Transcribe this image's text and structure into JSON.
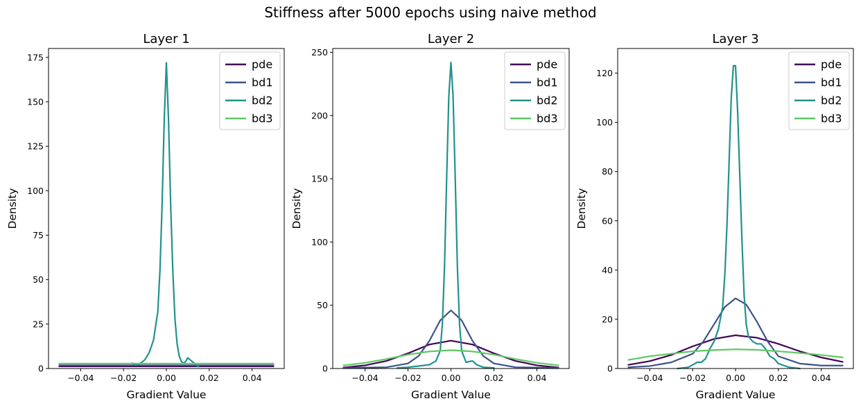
{
  "suptitle": "Stiffness after 5000 epochs using naive method",
  "colors": {
    "pde": "#440154",
    "bd1": "#3b528b",
    "bd2": "#21918c",
    "bd3": "#5ec962"
  },
  "chart_data": [
    {
      "type": "line",
      "title": "Layer 1",
      "xlabel": "Gradient Value",
      "ylabel": "Density",
      "xlim": [
        -0.055,
        0.055
      ],
      "ylim": [
        0,
        180
      ],
      "xticks": [
        -0.04,
        -0.02,
        0.0,
        0.02,
        0.04
      ],
      "xtick_labels": [
        "−0.04",
        "−0.02",
        "0.00",
        "0.02",
        "0.04"
      ],
      "yticks": [
        0,
        25,
        50,
        75,
        100,
        125,
        150,
        175
      ],
      "ytick_labels": [
        "0",
        "25",
        "50",
        "75",
        "100",
        "125",
        "150",
        "175"
      ],
      "legend_position": "upper right",
      "series": [
        {
          "name": "pde",
          "x": [
            -0.05,
            0.05
          ],
          "y": [
            1.2,
            1.2
          ]
        },
        {
          "name": "bd1",
          "x": [
            -0.05,
            0.05
          ],
          "y": [
            1.8,
            1.8
          ]
        },
        {
          "name": "bd2",
          "x": [
            -0.016,
            -0.014,
            -0.012,
            -0.01,
            -0.008,
            -0.006,
            -0.004,
            -0.003,
            -0.002,
            -0.001,
            0.0,
            0.001,
            0.002,
            0.003,
            0.004,
            0.005,
            0.006,
            0.007,
            0.008,
            0.009,
            0.01,
            0.011,
            0.012,
            0.013,
            0.014,
            0.015
          ],
          "y": [
            3,
            2,
            3,
            5,
            9,
            16,
            32,
            55,
            92,
            140,
            172,
            140,
            92,
            55,
            28,
            14,
            7,
            4,
            3,
            4,
            6,
            5,
            4,
            3,
            2,
            1
          ]
        },
        {
          "name": "bd3",
          "x": [
            -0.05,
            0.05
          ],
          "y": [
            2.8,
            2.8
          ]
        }
      ]
    },
    {
      "type": "line",
      "title": "Layer 2",
      "xlabel": "Gradient Value",
      "ylabel": "Density",
      "xlim": [
        -0.055,
        0.055
      ],
      "ylim": [
        0,
        253
      ],
      "xticks": [
        -0.04,
        -0.02,
        0.0,
        0.02,
        0.04
      ],
      "xtick_labels": [
        "−0.04",
        "−0.02",
        "0.00",
        "0.02",
        "0.04"
      ],
      "yticks": [
        0,
        50,
        100,
        150,
        200,
        250
      ],
      "ytick_labels": [
        "0",
        "50",
        "100",
        "150",
        "200",
        "250"
      ],
      "legend_position": "upper right",
      "series": [
        {
          "name": "pde",
          "x": [
            -0.05,
            -0.04,
            -0.03,
            -0.02,
            -0.01,
            0.0,
            0.01,
            0.02,
            0.03,
            0.04,
            0.05
          ],
          "y": [
            0.8,
            2.5,
            6,
            12,
            19,
            22,
            19,
            12,
            6,
            2.5,
            0.8
          ]
        },
        {
          "name": "bd1",
          "x": [
            -0.05,
            -0.03,
            -0.02,
            -0.015,
            -0.01,
            -0.005,
            0.0,
            0.005,
            0.01,
            0.015,
            0.02,
            0.03,
            0.05
          ],
          "y": [
            0.5,
            1,
            4,
            10,
            22,
            38,
            46,
            38,
            22,
            10,
            4,
            1,
            0.5
          ]
        },
        {
          "name": "bd2",
          "x": [
            -0.025,
            -0.02,
            -0.015,
            -0.01,
            -0.007,
            -0.005,
            -0.004,
            -0.003,
            -0.002,
            -0.001,
            0.0,
            0.001,
            0.002,
            0.003,
            0.004,
            0.005,
            0.007,
            0.01,
            0.012,
            0.015,
            0.02
          ],
          "y": [
            0.5,
            1,
            2,
            3,
            6,
            14,
            35,
            80,
            150,
            215,
            242,
            215,
            150,
            80,
            35,
            14,
            5,
            6,
            3,
            1,
            0.5
          ]
        },
        {
          "name": "bd3",
          "x": [
            -0.05,
            -0.04,
            -0.03,
            -0.02,
            -0.01,
            0.0,
            0.01,
            0.02,
            0.03,
            0.04,
            0.05
          ],
          "y": [
            2.5,
            4.5,
            7.5,
            11,
            13.5,
            14.5,
            13.5,
            11,
            7.5,
            4.5,
            2.5
          ]
        }
      ]
    },
    {
      "type": "line",
      "title": "Layer 3",
      "xlabel": "Gradient Value",
      "ylabel": "Density",
      "xlim": [
        -0.055,
        0.055
      ],
      "ylim": [
        0,
        130
      ],
      "xticks": [
        -0.04,
        -0.02,
        0.0,
        0.02,
        0.04
      ],
      "xtick_labels": [
        "−0.04",
        "−0.02",
        "0.00",
        "0.02",
        "0.04"
      ],
      "yticks": [
        0,
        20,
        40,
        60,
        80,
        100,
        120
      ],
      "ytick_labels": [
        "0",
        "20",
        "40",
        "60",
        "80",
        "100",
        "120"
      ],
      "legend_position": "upper right",
      "series": [
        {
          "name": "pde",
          "x": [
            -0.05,
            -0.04,
            -0.03,
            -0.02,
            -0.01,
            0.0,
            0.01,
            0.02,
            0.03,
            0.04,
            0.05
          ],
          "y": [
            1.5,
            3,
            5.5,
            9,
            12,
            13.5,
            12.5,
            10,
            7,
            4.5,
            2.7
          ]
        },
        {
          "name": "bd1",
          "x": [
            -0.05,
            -0.04,
            -0.03,
            -0.02,
            -0.015,
            -0.01,
            -0.005,
            0.0,
            0.005,
            0.01,
            0.015,
            0.02,
            0.03,
            0.04,
            0.05
          ],
          "y": [
            0.5,
            1,
            2.5,
            6,
            11,
            18,
            25,
            28.5,
            26,
            19,
            11,
            5,
            2,
            1.2,
            1.2
          ]
        },
        {
          "name": "bd2",
          "x": [
            -0.027,
            -0.022,
            -0.02,
            -0.018,
            -0.016,
            -0.014,
            -0.012,
            -0.01,
            -0.008,
            -0.006,
            -0.005,
            -0.004,
            -0.003,
            -0.002,
            -0.001,
            0.0,
            0.001,
            0.002,
            0.003,
            0.004,
            0.005,
            0.006,
            0.008,
            0.01,
            0.012,
            0.014,
            0.016,
            0.018,
            0.02,
            0.025,
            0.03
          ],
          "y": [
            0,
            0.5,
            1.5,
            2.5,
            2.5,
            4,
            8,
            11,
            16,
            25,
            38,
            58,
            84,
            110,
            123,
            123,
            104,
            78,
            52,
            30,
            18,
            13,
            11,
            10,
            10,
            8,
            5,
            4,
            2,
            0.5,
            0
          ]
        },
        {
          "name": "bd3",
          "x": [
            -0.05,
            -0.04,
            -0.03,
            -0.02,
            -0.01,
            0.0,
            0.01,
            0.02,
            0.03,
            0.04,
            0.05
          ],
          "y": [
            3.5,
            5,
            6,
            7,
            7.5,
            7.8,
            7.6,
            7,
            6.3,
            5.5,
            4.5
          ]
        }
      ]
    }
  ]
}
